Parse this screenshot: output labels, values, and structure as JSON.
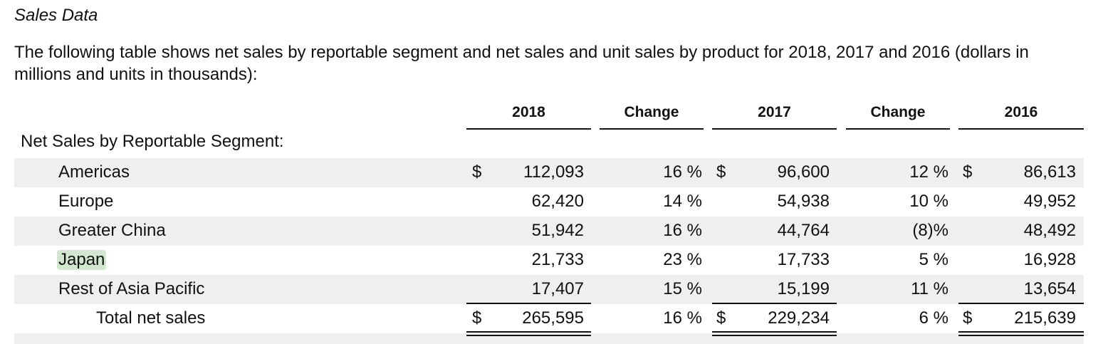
{
  "doc": {
    "section_title": "Sales Data",
    "intro": "The following table shows net sales by reportable segment and net sales and unit sales by product for 2018, 2017 and 2016 (dollars in millions and units in thousands):"
  },
  "table": {
    "headers": {
      "y2018": "2018",
      "change1": "Change",
      "y2017": "2017",
      "change2": "Change",
      "y2016": "2016"
    },
    "section_label": "Net Sales by Reportable Segment:",
    "currency": "$",
    "rows": [
      {
        "label": "Americas",
        "v2018": "112,093",
        "chg1": "16 %",
        "v2017": "96,600",
        "chg2": "12 %",
        "v2016": "86,613"
      },
      {
        "label": "Europe",
        "v2018": "62,420",
        "chg1": "14 %",
        "v2017": "54,938",
        "chg2": "10 %",
        "v2016": "49,952"
      },
      {
        "label": "Greater China",
        "v2018": "51,942",
        "chg1": "16 %",
        "v2017": "44,764",
        "chg2": "(8)%",
        "v2016": "48,492"
      },
      {
        "label": "Japan",
        "v2018": "21,733",
        "chg1": "23 %",
        "v2017": "17,733",
        "chg2": "5 %",
        "v2016": "16,928"
      },
      {
        "label": "Rest of Asia Pacific",
        "v2018": "17,407",
        "chg1": "15 %",
        "v2017": "15,199",
        "chg2": "11 %",
        "v2016": "13,654"
      }
    ],
    "total": {
      "label": "Total net sales",
      "v2018": "265,595",
      "chg1": "16 %",
      "v2017": "229,234",
      "chg2": "6 %",
      "v2016": "215,639"
    }
  },
  "colors": {
    "highlight": "#d3e6cf",
    "band": "#efefef"
  }
}
